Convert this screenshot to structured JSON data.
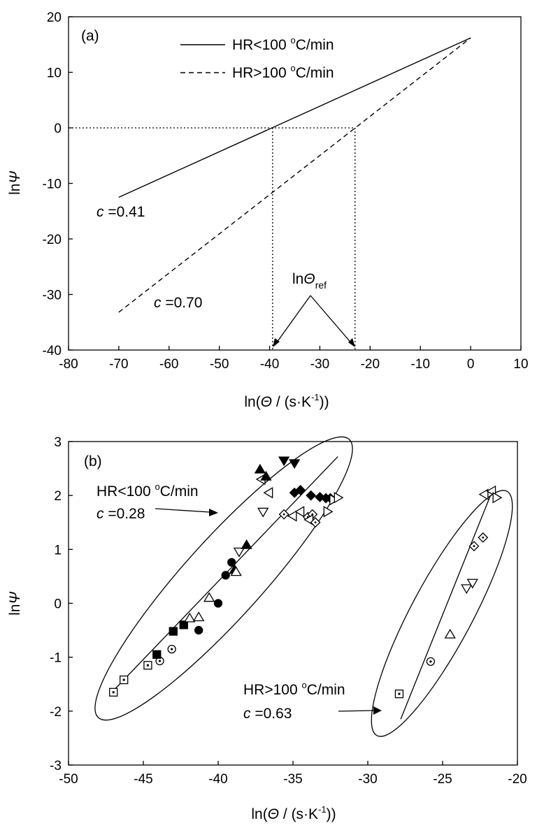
{
  "chart_data": [
    {
      "panel_label": "(a)",
      "type": "line",
      "xlim": [
        -80,
        10
      ],
      "ylim": [
        -40,
        20
      ],
      "xticks": [
        -80,
        -70,
        -60,
        -50,
        -40,
        -30,
        -20,
        -10,
        0,
        10
      ],
      "yticks": [
        -40,
        -30,
        -20,
        -10,
        0,
        10,
        20
      ],
      "xlabel": "ln(Θ / (s·K⁻¹))",
      "ylabel": "lnΨ",
      "legend_placement": "top-center",
      "series": [
        {
          "name": "HR<100 °C/min",
          "style": "solid",
          "c": "c =0.41",
          "x": [
            -70,
            0
          ],
          "y": [
            -12.5,
            16.2
          ]
        },
        {
          "name": "HR>100 °C/min",
          "style": "dashed",
          "c": "c =0.70",
          "x": [
            -70,
            0
          ],
          "y": [
            -33.2,
            16.2
          ]
        }
      ],
      "guides": {
        "y0": 0,
        "x_refs": [
          -39.4,
          -23
        ]
      },
      "annotation": "lnΘref"
    },
    {
      "panel_label": "(b)",
      "type": "scatter",
      "xlim": [
        -50,
        -20
      ],
      "ylim": [
        -3,
        3
      ],
      "xticks": [
        -50,
        -45,
        -40,
        -35,
        -30,
        -25,
        -20
      ],
      "yticks": [
        -3,
        -2,
        -1,
        0,
        1,
        2,
        3
      ],
      "xlabel": "ln(Θ / (s·K⁻¹))",
      "ylabel": "lnΨ",
      "groups": [
        {
          "label": "HR<100 °C/min",
          "c": "c =0.28",
          "fit": {
            "x": [
              -47,
              -32
            ],
            "y": [
              -1.62,
              2.72
            ]
          },
          "points": [
            {
              "m": "square-open",
              "x": -47.0,
              "y": -1.65
            },
            {
              "m": "square-open",
              "x": -46.3,
              "y": -1.42
            },
            {
              "m": "square-open",
              "x": -44.7,
              "y": -1.15
            },
            {
              "m": "circle-open",
              "x": -43.9,
              "y": -1.07
            },
            {
              "m": "circle-open",
              "x": -43.1,
              "y": -0.85
            },
            {
              "m": "square-filled",
              "x": -44.1,
              "y": -0.95
            },
            {
              "m": "square-filled",
              "x": -43.0,
              "y": -0.52
            },
            {
              "m": "square-filled",
              "x": -42.3,
              "y": -0.4
            },
            {
              "m": "circle-filled",
              "x": -41.3,
              "y": -0.5
            },
            {
              "m": "triangle-open",
              "x": -41.9,
              "y": -0.28
            },
            {
              "m": "triangle-open",
              "x": -41.3,
              "y": -0.26
            },
            {
              "m": "circle-filled",
              "x": -40.0,
              "y": 0.0
            },
            {
              "m": "triangle-open",
              "x": -40.6,
              "y": 0.1
            },
            {
              "m": "circle-filled",
              "x": -39.5,
              "y": 0.52
            },
            {
              "m": "circle-filled",
              "x": -39.1,
              "y": 0.76
            },
            {
              "m": "triangle-filled",
              "x": -38.9,
              "y": 0.62
            },
            {
              "m": "triangle-open",
              "x": -38.8,
              "y": 0.58
            },
            {
              "m": "triangle-down-open",
              "x": -38.6,
              "y": 0.96
            },
            {
              "m": "triangle-filled",
              "x": -38.1,
              "y": 1.08
            },
            {
              "m": "triangle-down-open",
              "x": -37.0,
              "y": 1.7
            },
            {
              "m": "triangle-left-open",
              "x": -36.6,
              "y": 2.05
            },
            {
              "m": "triangle-left-open",
              "x": -37.1,
              "y": 2.3
            },
            {
              "m": "triangle-filled",
              "x": -37.2,
              "y": 2.48
            },
            {
              "m": "triangle-filled",
              "x": -36.8,
              "y": 2.35
            },
            {
              "m": "triangle-down-filled",
              "x": -35.6,
              "y": 2.65
            },
            {
              "m": "triangle-down-filled",
              "x": -34.9,
              "y": 2.6
            },
            {
              "m": "diamond-open",
              "x": -35.6,
              "y": 1.65
            },
            {
              "m": "triangle-left-open",
              "x": -35.0,
              "y": 1.62
            },
            {
              "m": "triangle-left-open",
              "x": -34.5,
              "y": 1.7
            },
            {
              "m": "diamond-open",
              "x": -34.0,
              "y": 1.6
            },
            {
              "m": "diamond-open",
              "x": -33.7,
              "y": 1.65
            },
            {
              "m": "triangle-left-open",
              "x": -33.9,
              "y": 1.55
            },
            {
              "m": "diamond-open",
              "x": -33.5,
              "y": 1.5
            },
            {
              "m": "diamond-filled",
              "x": -34.9,
              "y": 2.05
            },
            {
              "m": "diamond-filled",
              "x": -34.5,
              "y": 2.1
            },
            {
              "m": "diamond-filled",
              "x": -33.8,
              "y": 2.0
            },
            {
              "m": "diamond-filled",
              "x": -33.2,
              "y": 1.97
            },
            {
              "m": "diamond-filled",
              "x": -32.8,
              "y": 1.95
            },
            {
              "m": "diamond-filled",
              "x": -32.5,
              "y": 1.95
            },
            {
              "m": "triangle-right-open",
              "x": -32.3,
              "y": 1.92
            },
            {
              "m": "triangle-right-open",
              "x": -32.0,
              "y": 1.96
            },
            {
              "m": "triangle-right-open",
              "x": -32.7,
              "y": 1.7
            }
          ]
        },
        {
          "label": "HR>100 °C/min",
          "c": "c =0.63",
          "fit": {
            "x": [
              -27.8,
              -21.8
            ],
            "y": [
              -2.15,
              2.0
            ]
          },
          "points": [
            {
              "m": "square-open",
              "x": -27.9,
              "y": -1.68
            },
            {
              "m": "circle-open",
              "x": -25.8,
              "y": -1.08
            },
            {
              "m": "triangle-open",
              "x": -24.5,
              "y": -0.58
            },
            {
              "m": "triangle-down-open",
              "x": -23.4,
              "y": 0.28
            },
            {
              "m": "triangle-down-open",
              "x": -23.0,
              "y": 0.38
            },
            {
              "m": "diamond-open",
              "x": -22.9,
              "y": 1.06
            },
            {
              "m": "diamond-open",
              "x": -22.3,
              "y": 1.22
            },
            {
              "m": "triangle-left-open",
              "x": -22.2,
              "y": 2.02
            },
            {
              "m": "triangle-left-open",
              "x": -21.7,
              "y": 2.08
            },
            {
              "m": "triangle-right-open",
              "x": -21.4,
              "y": 1.96
            }
          ]
        }
      ]
    }
  ]
}
